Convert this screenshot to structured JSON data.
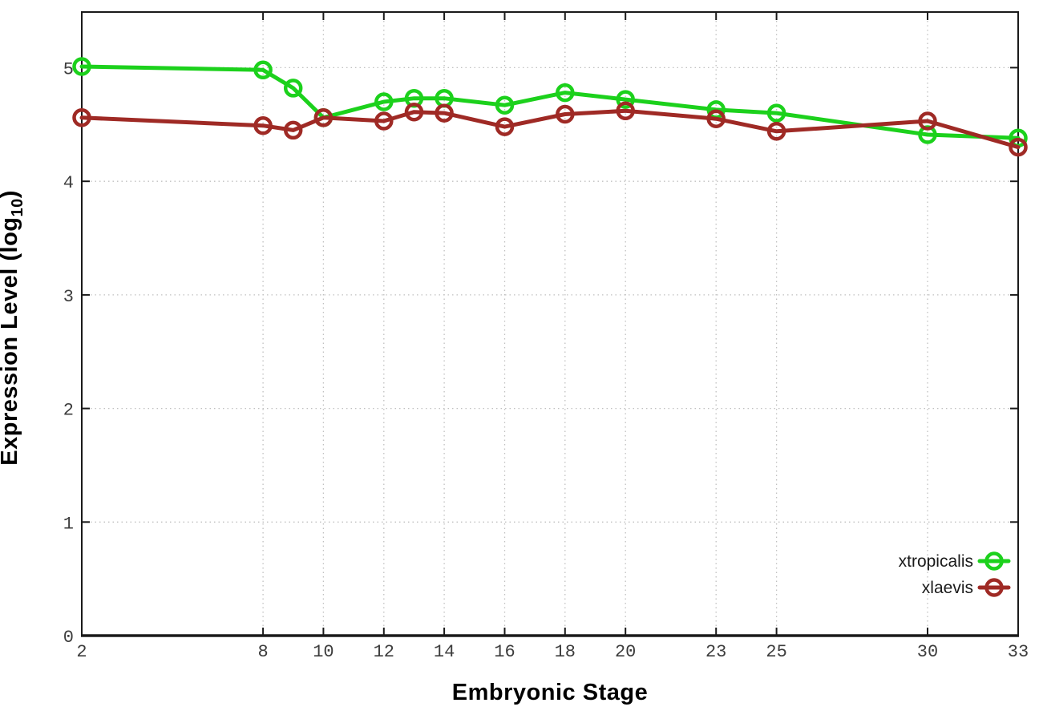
{
  "chart_data": {
    "type": "line",
    "title": "",
    "xlabel": "Embryonic Stage",
    "ylabel": "Expression Level (log10)",
    "ylabel_parts": {
      "main": "Expression Level (log",
      "sub": "10",
      "end": ")"
    },
    "x": [
      2,
      8,
      9,
      10,
      12,
      13,
      14,
      16,
      18,
      20,
      23,
      25,
      30,
      33
    ],
    "xtick_labels": [
      "2",
      "8",
      "10",
      "12",
      "14",
      "16",
      "18",
      "20",
      "23",
      "25",
      "30",
      "33"
    ],
    "xtick_values": [
      2,
      8,
      10,
      12,
      14,
      16,
      18,
      20,
      23,
      25,
      30,
      33
    ],
    "ytick_labels": [
      "0",
      "1",
      "2",
      "3",
      "4",
      "5"
    ],
    "ytick_values": [
      0,
      1,
      2,
      3,
      4,
      5
    ],
    "xlim": [
      2,
      33
    ],
    "ylim": [
      0,
      5.49
    ],
    "grid": true,
    "legend_position": "bottom-right",
    "marker": "open-circle",
    "series": [
      {
        "name": "xtropicalis",
        "color": "#1cd11c",
        "values": [
          5.01,
          4.98,
          4.82,
          4.56,
          4.7,
          4.73,
          4.73,
          4.67,
          4.78,
          4.72,
          4.63,
          4.6,
          4.41,
          4.38
        ]
      },
      {
        "name": "xlaevis",
        "color": "#9f2a25",
        "values": [
          4.56,
          4.49,
          4.45,
          4.56,
          4.53,
          4.61,
          4.6,
          4.48,
          4.59,
          4.62,
          4.55,
          4.44,
          4.53,
          4.3
        ]
      }
    ],
    "style": {
      "axis_color": "#1a1a1a",
      "grid_color": "#c0c0c0",
      "tick_label_color": "#3d3d3d",
      "legend_text_color": "#1a1a1a",
      "background": "#ffffff"
    }
  }
}
